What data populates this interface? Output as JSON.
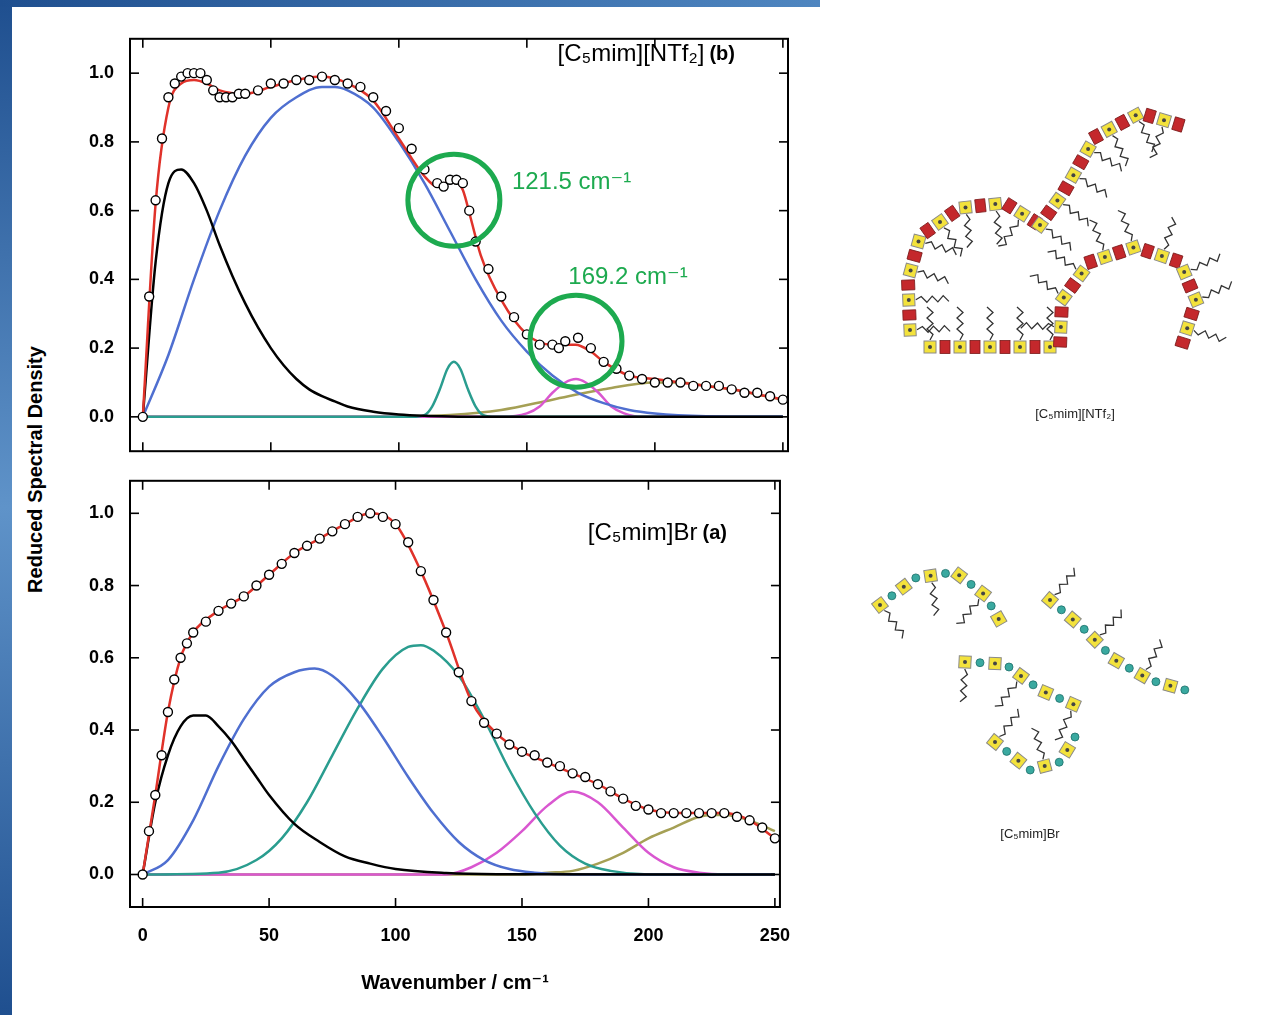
{
  "chart_data": [
    {
      "type": "scatter",
      "title": "[C₅mim][NTf₂]",
      "panel": "(b)",
      "y_label": "Reduced Spectral Density",
      "xlim": [
        -5,
        252
      ],
      "ylim": [
        -0.1,
        1.1
      ],
      "xticks": [
        0,
        50,
        100,
        150,
        200,
        250
      ],
      "yticks": [
        {
          "value": 0,
          "label": "0.0"
        },
        0.2,
        0.4,
        0.6,
        0.8,
        {
          "value": 1,
          "label": "1.0"
        }
      ],
      "grid": false,
      "tick_labels": "y",
      "annotations": [
        {
          "text": "121.5 cm⁻¹",
          "x": 121.5,
          "y": 0.63
        },
        {
          "text": "169.2 cm⁻¹",
          "x": 169.2,
          "y": 0.22
        }
      ],
      "series": [
        {
          "type": "scatter",
          "marker": "circle",
          "color": "#000000",
          "x": [
            0,
            2.5,
            5,
            7.5,
            10,
            12.5,
            15,
            17.5,
            20,
            22.5,
            25,
            27.5,
            30,
            32.5,
            35,
            37.5,
            40,
            45,
            50,
            55,
            60,
            65,
            70,
            75,
            80,
            85,
            90,
            95,
            100,
            105,
            110,
            115,
            117.5,
            120,
            122.5,
            125,
            127.5,
            130,
            135,
            140,
            145,
            150,
            155,
            160,
            162.5,
            165,
            170,
            175,
            180,
            185,
            190,
            195,
            200,
            205,
            210,
            215,
            220,
            225,
            230,
            235,
            240,
            245,
            250
          ],
          "values": [
            0,
            0.35,
            0.63,
            0.81,
            0.93,
            0.97,
            0.99,
            1.0,
            1.0,
            1.0,
            0.98,
            0.95,
            0.93,
            0.93,
            0.93,
            0.94,
            0.94,
            0.95,
            0.97,
            0.97,
            0.98,
            0.98,
            0.99,
            0.98,
            0.97,
            0.96,
            0.93,
            0.89,
            0.84,
            0.78,
            0.72,
            0.68,
            0.67,
            0.69,
            0.69,
            0.68,
            0.6,
            0.51,
            0.43,
            0.35,
            0.29,
            0.24,
            0.21,
            0.21,
            0.2,
            0.22,
            0.23,
            0.2,
            0.16,
            0.14,
            0.12,
            0.11,
            0.1,
            0.1,
            0.1,
            0.09,
            0.09,
            0.09,
            0.08,
            0.07,
            0.07,
            0.06,
            0.05
          ]
        },
        {
          "type": "line",
          "marker": "none",
          "line_style": "solid",
          "color": "#e0322a",
          "x": [
            0,
            5,
            10,
            15,
            20,
            25,
            30,
            40,
            50,
            60,
            70,
            80,
            90,
            100,
            110,
            115,
            118,
            121.5,
            125,
            128,
            132,
            140,
            150,
            160,
            165,
            169,
            175,
            180,
            190,
            200,
            210,
            220,
            230,
            240,
            250
          ],
          "values": [
            0,
            0.62,
            0.9,
            0.97,
            0.98,
            0.97,
            0.95,
            0.94,
            0.96,
            0.98,
            0.99,
            0.97,
            0.92,
            0.81,
            0.7,
            0.67,
            0.68,
            0.69,
            0.66,
            0.58,
            0.47,
            0.34,
            0.24,
            0.21,
            0.21,
            0.21,
            0.19,
            0.16,
            0.12,
            0.11,
            0.1,
            0.09,
            0.08,
            0.066,
            0.05
          ]
        },
        {
          "type": "line",
          "marker": "none",
          "line_style": "solid",
          "color": "#000000",
          "x": [
            0,
            5,
            10,
            15,
            20,
            25,
            30,
            35,
            40,
            45,
            50,
            55,
            60,
            65,
            70,
            75,
            80,
            90,
            100,
            110,
            120,
            130,
            250
          ],
          "values": [
            0,
            0.45,
            0.68,
            0.72,
            0.68,
            0.6,
            0.5,
            0.41,
            0.33,
            0.26,
            0.2,
            0.15,
            0.11,
            0.08,
            0.06,
            0.045,
            0.03,
            0.015,
            0.007,
            0.003,
            0.001,
            0,
            0
          ]
        },
        {
          "type": "line",
          "marker": "none",
          "line_style": "solid",
          "color": "#4f6fd0",
          "x": [
            0,
            10,
            20,
            30,
            40,
            50,
            60,
            70,
            75,
            80,
            90,
            100,
            110,
            120,
            130,
            140,
            150,
            160,
            170,
            180,
            190,
            200,
            220,
            250
          ],
          "values": [
            0,
            0.18,
            0.4,
            0.6,
            0.76,
            0.87,
            0.93,
            0.96,
            0.96,
            0.95,
            0.9,
            0.8,
            0.68,
            0.54,
            0.4,
            0.28,
            0.19,
            0.12,
            0.07,
            0.04,
            0.02,
            0.01,
            0.002,
            0
          ]
        },
        {
          "type": "line",
          "marker": "none",
          "line_style": "solid",
          "color": "#2a9d8f",
          "x": [
            0,
            105,
            110,
            113,
            116,
            119,
            121.5,
            124,
            127,
            130,
            133,
            138,
            250
          ],
          "values": [
            0,
            0,
            0.005,
            0.03,
            0.08,
            0.14,
            0.16,
            0.14,
            0.08,
            0.03,
            0.005,
            0,
            0
          ]
        },
        {
          "type": "line",
          "marker": "none",
          "line_style": "solid",
          "color": "#d957d0",
          "x": [
            0,
            140,
            150,
            155,
            160,
            165,
            169.2,
            173,
            178,
            183,
            188,
            195,
            250
          ],
          "values": [
            0,
            0,
            0.01,
            0.03,
            0.07,
            0.1,
            0.11,
            0.1,
            0.07,
            0.03,
            0.01,
            0,
            0
          ]
        },
        {
          "type": "line",
          "marker": "none",
          "line_style": "solid",
          "color": "#a5a055",
          "x": [
            0,
            100,
            120,
            140,
            160,
            180,
            200,
            210,
            220,
            230,
            240,
            250
          ],
          "values": [
            0,
            0,
            0.005,
            0.02,
            0.05,
            0.08,
            0.1,
            0.1,
            0.09,
            0.08,
            0.065,
            0.05
          ]
        }
      ]
    },
    {
      "type": "scatter",
      "title": "[C₅mim]Br",
      "panel": "(a)",
      "x_label": "Wavenumber / cm⁻¹",
      "xlim": [
        -5,
        252
      ],
      "ylim": [
        -0.09,
        1.09
      ],
      "xticks": [
        0,
        50,
        100,
        150,
        200,
        250
      ],
      "yticks": [
        {
          "value": 0,
          "label": "0.0"
        },
        0.2,
        0.4,
        0.6,
        0.8,
        {
          "value": 1,
          "label": "1.0"
        }
      ],
      "grid": false,
      "series": [
        {
          "type": "scatter",
          "marker": "circle",
          "color": "#000000",
          "x": [
            0,
            2.5,
            5,
            7.5,
            10,
            12.5,
            15,
            17.5,
            20,
            25,
            30,
            35,
            40,
            45,
            50,
            55,
            60,
            65,
            70,
            75,
            80,
            85,
            90,
            95,
            100,
            105,
            110,
            115,
            120,
            125,
            130,
            135,
            140,
            145,
            150,
            155,
            160,
            165,
            170,
            175,
            180,
            185,
            190,
            195,
            200,
            205,
            210,
            215,
            220,
            225,
            230,
            235,
            240,
            245,
            250
          ],
          "values": [
            0,
            0.12,
            0.22,
            0.33,
            0.45,
            0.54,
            0.6,
            0.64,
            0.67,
            0.7,
            0.73,
            0.75,
            0.77,
            0.8,
            0.83,
            0.86,
            0.89,
            0.91,
            0.93,
            0.95,
            0.97,
            0.99,
            1.0,
            0.99,
            0.97,
            0.92,
            0.84,
            0.76,
            0.67,
            0.56,
            0.48,
            0.42,
            0.39,
            0.36,
            0.34,
            0.33,
            0.31,
            0.3,
            0.28,
            0.27,
            0.25,
            0.23,
            0.21,
            0.19,
            0.18,
            0.17,
            0.17,
            0.17,
            0.17,
            0.17,
            0.17,
            0.16,
            0.15,
            0.13,
            0.1
          ]
        },
        {
          "type": "line",
          "marker": "none",
          "line_style": "solid",
          "color": "#e0322a",
          "x": [
            0,
            5,
            10,
            15,
            20,
            30,
            40,
            50,
            60,
            70,
            80,
            90,
            100,
            110,
            120,
            130,
            140,
            150,
            160,
            170,
            180,
            190,
            200,
            210,
            220,
            230,
            240,
            250
          ],
          "values": [
            0,
            0.22,
            0.45,
            0.6,
            0.67,
            0.73,
            0.77,
            0.83,
            0.89,
            0.93,
            0.97,
            1.0,
            0.97,
            0.84,
            0.67,
            0.48,
            0.39,
            0.34,
            0.31,
            0.28,
            0.25,
            0.21,
            0.18,
            0.17,
            0.17,
            0.17,
            0.15,
            0.1
          ]
        },
        {
          "type": "line",
          "marker": "none",
          "line_style": "solid",
          "color": "#000000",
          "x": [
            0,
            5,
            10,
            15,
            20,
            25,
            30,
            35,
            40,
            45,
            50,
            60,
            70,
            80,
            90,
            100,
            120,
            140,
            250
          ],
          "values": [
            0,
            0.2,
            0.33,
            0.41,
            0.44,
            0.44,
            0.41,
            0.37,
            0.32,
            0.27,
            0.22,
            0.14,
            0.09,
            0.05,
            0.03,
            0.015,
            0.004,
            0.001,
            0
          ]
        },
        {
          "type": "line",
          "marker": "none",
          "line_style": "solid",
          "color": "#4f6fd0",
          "x": [
            0,
            10,
            20,
            30,
            40,
            50,
            60,
            68,
            75,
            85,
            95,
            105,
            115,
            125,
            135,
            145,
            155,
            170,
            250
          ],
          "values": [
            0,
            0.04,
            0.15,
            0.3,
            0.43,
            0.52,
            0.56,
            0.57,
            0.55,
            0.48,
            0.38,
            0.27,
            0.17,
            0.09,
            0.04,
            0.015,
            0.005,
            0,
            0
          ]
        },
        {
          "type": "line",
          "marker": "none",
          "line_style": "solid",
          "color": "#2a9d8f",
          "x": [
            0,
            30,
            45,
            55,
            65,
            75,
            85,
            95,
            105,
            110,
            115,
            125,
            135,
            145,
            155,
            165,
            175,
            185,
            200,
            250
          ],
          "values": [
            0,
            0.005,
            0.04,
            0.1,
            0.2,
            0.33,
            0.46,
            0.57,
            0.63,
            0.635,
            0.62,
            0.55,
            0.43,
            0.29,
            0.17,
            0.08,
            0.03,
            0.01,
            0,
            0
          ]
        },
        {
          "type": "line",
          "marker": "none",
          "line_style": "solid",
          "color": "#d957d0",
          "x": [
            0,
            120,
            130,
            140,
            150,
            160,
            170,
            180,
            190,
            200,
            210,
            220,
            230,
            250
          ],
          "values": [
            0,
            0,
            0.02,
            0.06,
            0.12,
            0.19,
            0.23,
            0.2,
            0.13,
            0.06,
            0.02,
            0.005,
            0,
            0
          ]
        },
        {
          "type": "line",
          "marker": "none",
          "line_style": "solid",
          "color": "#a5a055",
          "x": [
            0,
            150,
            160,
            170,
            180,
            190,
            200,
            210,
            220,
            225,
            230,
            240,
            250
          ],
          "values": [
            0,
            0,
            0.005,
            0.01,
            0.03,
            0.06,
            0.1,
            0.13,
            0.16,
            0.165,
            0.165,
            0.15,
            0.12
          ]
        }
      ]
    }
  ],
  "schematics": [
    {
      "caption": "[C₅mim][NTf₂]"
    },
    {
      "caption": "[C₅mim]Br"
    }
  ]
}
